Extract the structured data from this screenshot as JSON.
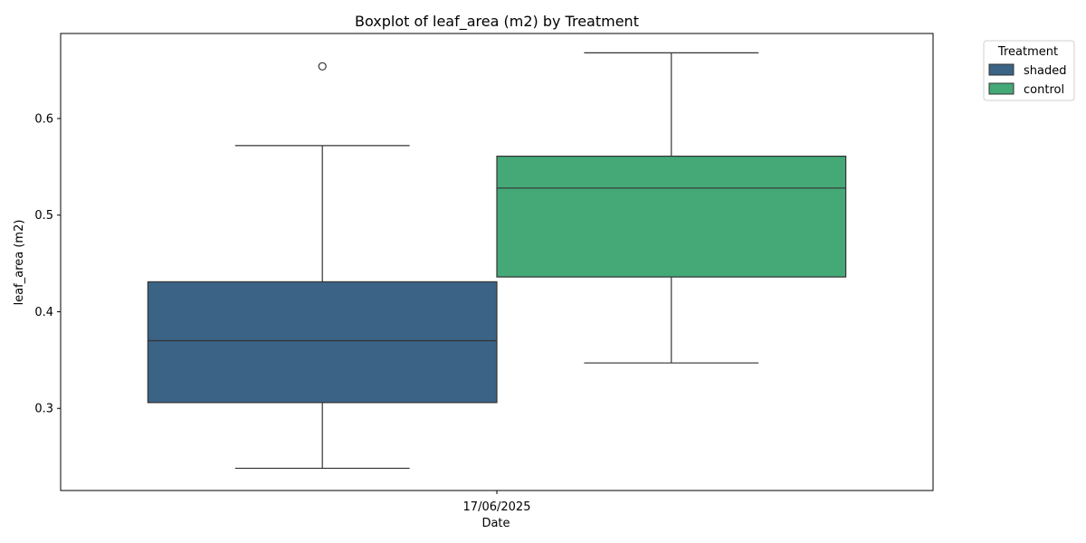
{
  "chart_data": {
    "type": "boxplot",
    "title": "Boxplot of leaf_area (m2) by Treatment",
    "xlabel": "Date",
    "ylabel": "leaf_area (m2)",
    "categories": [
      "17/06/2025"
    ],
    "ylim": [
      0.215,
      0.688
    ],
    "yticks": [
      0.3,
      0.4,
      0.5,
      0.6
    ],
    "ytick_labels": [
      "0.3",
      "0.4",
      "0.5",
      "0.6"
    ],
    "grid": false,
    "legend": {
      "title": "Treatment",
      "placement": "outside-top-right"
    },
    "series": [
      {
        "name": "shaded",
        "color": "#3b6385",
        "whisker_low": 0.238,
        "q1": 0.306,
        "median": 0.37,
        "q3": 0.431,
        "whisker_high": 0.572,
        "outliers": [
          0.654
        ]
      },
      {
        "name": "control",
        "color": "#44a877",
        "whisker_low": 0.347,
        "q1": 0.436,
        "median": 0.528,
        "q3": 0.561,
        "whisker_high": 0.668,
        "outliers": []
      }
    ]
  }
}
